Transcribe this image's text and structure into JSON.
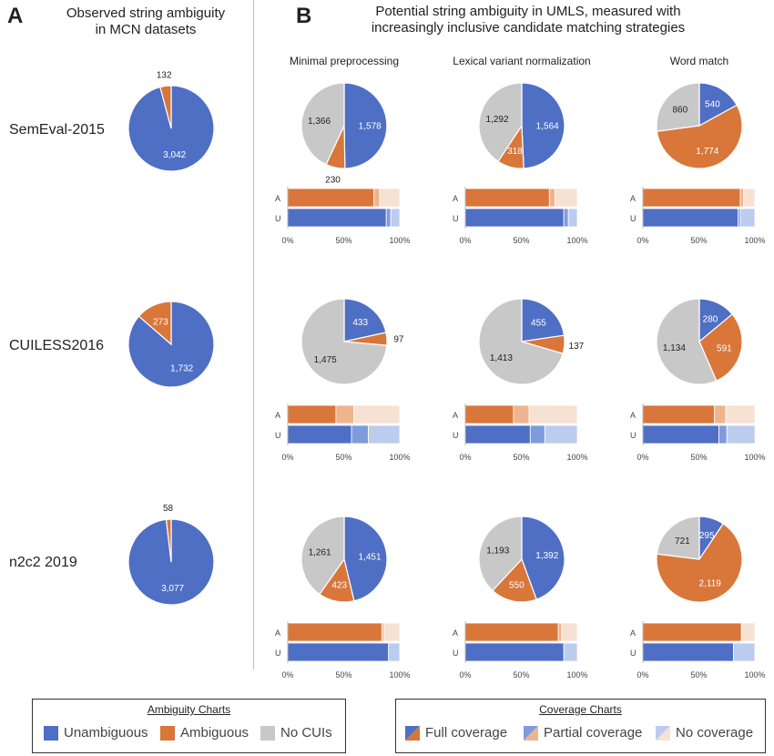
{
  "panel_a": {
    "letter": "A",
    "title_line1": "Observed string ambiguity",
    "title_line2": "in MCN datasets"
  },
  "panel_b": {
    "letter": "B",
    "title_line1": "Potential string ambiguity in UMLS, measured with",
    "title_line2": "increasingly inclusive candidate matching strategies"
  },
  "columns": [
    "Minimal preprocessing",
    "Lexical variant normalization",
    "Word match"
  ],
  "rows": [
    "SemEval-2015",
    "CUILESS2016",
    "n2c2 2019"
  ],
  "bar_row_labels": [
    "A",
    "U"
  ],
  "bar_ticks": [
    "0%",
    "50%",
    "100%"
  ],
  "colors": {
    "unambiguous": "#4F6FC5",
    "ambiguous": "#D9763A",
    "no_cuis": "#C8C8C8",
    "ambiguous_partial": "#EDB48E",
    "ambiguous_none": "#F7E1D3",
    "unambiguous_partial": "#7F9BDB",
    "unambiguous_none": "#BCCCEE"
  },
  "legend_ambiguity": {
    "title": "Ambiguity Charts",
    "items": [
      "Unambiguous",
      "Ambiguous",
      "No CUIs"
    ]
  },
  "legend_coverage": {
    "title": "Coverage Charts",
    "items": [
      "Full coverage",
      "Partial coverage",
      "No coverage"
    ]
  },
  "chart_data": [
    {
      "type": "pie",
      "panel": "A",
      "row": "SemEval-2015",
      "categories": [
        "Unambiguous",
        "Ambiguous"
      ],
      "values": [
        3042,
        132
      ],
      "labels": [
        "3,042",
        "132"
      ]
    },
    {
      "type": "pie",
      "panel": "A",
      "row": "CUILESS2016",
      "categories": [
        "Unambiguous",
        "Ambiguous"
      ],
      "values": [
        1732,
        273
      ],
      "labels": [
        "1,732",
        "273"
      ]
    },
    {
      "type": "pie",
      "panel": "A",
      "row": "n2c2 2019",
      "categories": [
        "Unambiguous",
        "Ambiguous"
      ],
      "values": [
        3077,
        58
      ],
      "labels": [
        "3,077",
        "58"
      ]
    },
    {
      "type": "pie",
      "panel": "B",
      "row": "SemEval-2015",
      "column": "Minimal preprocessing",
      "categories": [
        "Unambiguous",
        "Ambiguous",
        "No CUIs"
      ],
      "values": [
        1578,
        230,
        1366
      ],
      "labels": [
        "1,578",
        "230",
        "1,366"
      ]
    },
    {
      "type": "pie",
      "panel": "B",
      "row": "SemEval-2015",
      "column": "Lexical variant normalization",
      "categories": [
        "Unambiguous",
        "Ambiguous",
        "No CUIs"
      ],
      "values": [
        1564,
        318,
        1292
      ],
      "labels": [
        "1,564",
        "318",
        "1,292"
      ]
    },
    {
      "type": "pie",
      "panel": "B",
      "row": "SemEval-2015",
      "column": "Word match",
      "categories": [
        "Unambiguous",
        "Ambiguous",
        "No CUIs"
      ],
      "values": [
        540,
        1774,
        860
      ],
      "labels": [
        "540",
        "1,774",
        "860"
      ]
    },
    {
      "type": "pie",
      "panel": "B",
      "row": "CUILESS2016",
      "column": "Minimal preprocessing",
      "categories": [
        "Unambiguous",
        "Ambiguous",
        "No CUIs"
      ],
      "values": [
        433,
        97,
        1475
      ],
      "labels": [
        "433",
        "97",
        "1,475"
      ]
    },
    {
      "type": "pie",
      "panel": "B",
      "row": "CUILESS2016",
      "column": "Lexical variant normalization",
      "categories": [
        "Unambiguous",
        "Ambiguous",
        "No CUIs"
      ],
      "values": [
        455,
        137,
        1413
      ],
      "labels": [
        "455",
        "137",
        "1,413"
      ]
    },
    {
      "type": "pie",
      "panel": "B",
      "row": "CUILESS2016",
      "column": "Word match",
      "categories": [
        "Unambiguous",
        "Ambiguous",
        "No CUIs"
      ],
      "values": [
        280,
        591,
        1134
      ],
      "labels": [
        "280",
        "591",
        "1,134"
      ]
    },
    {
      "type": "pie",
      "panel": "B",
      "row": "n2c2 2019",
      "column": "Minimal preprocessing",
      "categories": [
        "Unambiguous",
        "Ambiguous",
        "No CUIs"
      ],
      "values": [
        1451,
        423,
        1261
      ],
      "labels": [
        "1,451",
        "423",
        "1,261"
      ]
    },
    {
      "type": "pie",
      "panel": "B",
      "row": "n2c2 2019",
      "column": "Lexical variant normalization",
      "categories": [
        "Unambiguous",
        "Ambiguous",
        "No CUIs"
      ],
      "values": [
        1392,
        550,
        1193
      ],
      "labels": [
        "1,392",
        "550",
        "1,193"
      ]
    },
    {
      "type": "pie",
      "panel": "B",
      "row": "n2c2 2019",
      "column": "Word match",
      "categories": [
        "Unambiguous",
        "Ambiguous",
        "No CUIs"
      ],
      "values": [
        295,
        2119,
        721
      ],
      "labels": [
        "295",
        "2,119",
        "721"
      ]
    },
    {
      "type": "bar",
      "orientation": "horizontal-stacked",
      "row": "SemEval-2015",
      "column": "Minimal preprocessing",
      "categories": [
        "A",
        "U"
      ],
      "series": [
        {
          "name": "Full coverage",
          "values": [
            77,
            88
          ]
        },
        {
          "name": "Partial coverage",
          "values": [
            5,
            4
          ]
        },
        {
          "name": "No coverage",
          "values": [
            18,
            8
          ]
        }
      ]
    },
    {
      "type": "bar",
      "orientation": "horizontal-stacked",
      "row": "SemEval-2015",
      "column": "Lexical variant normalization",
      "categories": [
        "A",
        "U"
      ],
      "series": [
        {
          "name": "Full coverage",
          "values": [
            75,
            88
          ]
        },
        {
          "name": "Partial coverage",
          "values": [
            5,
            4
          ]
        },
        {
          "name": "No coverage",
          "values": [
            20,
            8
          ]
        }
      ]
    },
    {
      "type": "bar",
      "orientation": "horizontal-stacked",
      "row": "SemEval-2015",
      "column": "Word match",
      "categories": [
        "A",
        "U"
      ],
      "series": [
        {
          "name": "Full coverage",
          "values": [
            87,
            85
          ]
        },
        {
          "name": "Partial coverage",
          "values": [
            3,
            2
          ]
        },
        {
          "name": "No coverage",
          "values": [
            10,
            13
          ]
        }
      ]
    },
    {
      "type": "bar",
      "orientation": "horizontal-stacked",
      "row": "CUILESS2016",
      "column": "Minimal preprocessing",
      "categories": [
        "A",
        "U"
      ],
      "series": [
        {
          "name": "Full coverage",
          "values": [
            43,
            57
          ]
        },
        {
          "name": "Partial coverage",
          "values": [
            16,
            15
          ]
        },
        {
          "name": "No coverage",
          "values": [
            41,
            28
          ]
        }
      ]
    },
    {
      "type": "bar",
      "orientation": "horizontal-stacked",
      "row": "CUILESS2016",
      "column": "Lexical variant normalization",
      "categories": [
        "A",
        "U"
      ],
      "series": [
        {
          "name": "Full coverage",
          "values": [
            43,
            58
          ]
        },
        {
          "name": "Partial coverage",
          "values": [
            14,
            13
          ]
        },
        {
          "name": "No coverage",
          "values": [
            43,
            29
          ]
        }
      ]
    },
    {
      "type": "bar",
      "orientation": "horizontal-stacked",
      "row": "CUILESS2016",
      "column": "Word match",
      "categories": [
        "A",
        "U"
      ],
      "series": [
        {
          "name": "Full coverage",
          "values": [
            64,
            68
          ]
        },
        {
          "name": "Partial coverage",
          "values": [
            10,
            7
          ]
        },
        {
          "name": "No coverage",
          "values": [
            26,
            25
          ]
        }
      ]
    },
    {
      "type": "bar",
      "orientation": "horizontal-stacked",
      "row": "n2c2 2019",
      "column": "Minimal preprocessing",
      "categories": [
        "A",
        "U"
      ],
      "series": [
        {
          "name": "Full coverage",
          "values": [
            84,
            90
          ]
        },
        {
          "name": "Partial coverage",
          "values": [
            2,
            0
          ]
        },
        {
          "name": "No coverage",
          "values": [
            14,
            10
          ]
        }
      ]
    },
    {
      "type": "bar",
      "orientation": "horizontal-stacked",
      "row": "n2c2 2019",
      "column": "Lexical variant normalization",
      "categories": [
        "A",
        "U"
      ],
      "series": [
        {
          "name": "Full coverage",
          "values": [
            83,
            88
          ]
        },
        {
          "name": "Partial coverage",
          "values": [
            3,
            0
          ]
        },
        {
          "name": "No coverage",
          "values": [
            14,
            12
          ]
        }
      ]
    },
    {
      "type": "bar",
      "orientation": "horizontal-stacked",
      "row": "n2c2 2019",
      "column": "Word match",
      "categories": [
        "A",
        "U"
      ],
      "series": [
        {
          "name": "Full coverage",
          "values": [
            88,
            81
          ]
        },
        {
          "name": "Partial coverage",
          "values": [
            0,
            0
          ]
        },
        {
          "name": "No coverage",
          "values": [
            12,
            19
          ]
        }
      ]
    }
  ]
}
